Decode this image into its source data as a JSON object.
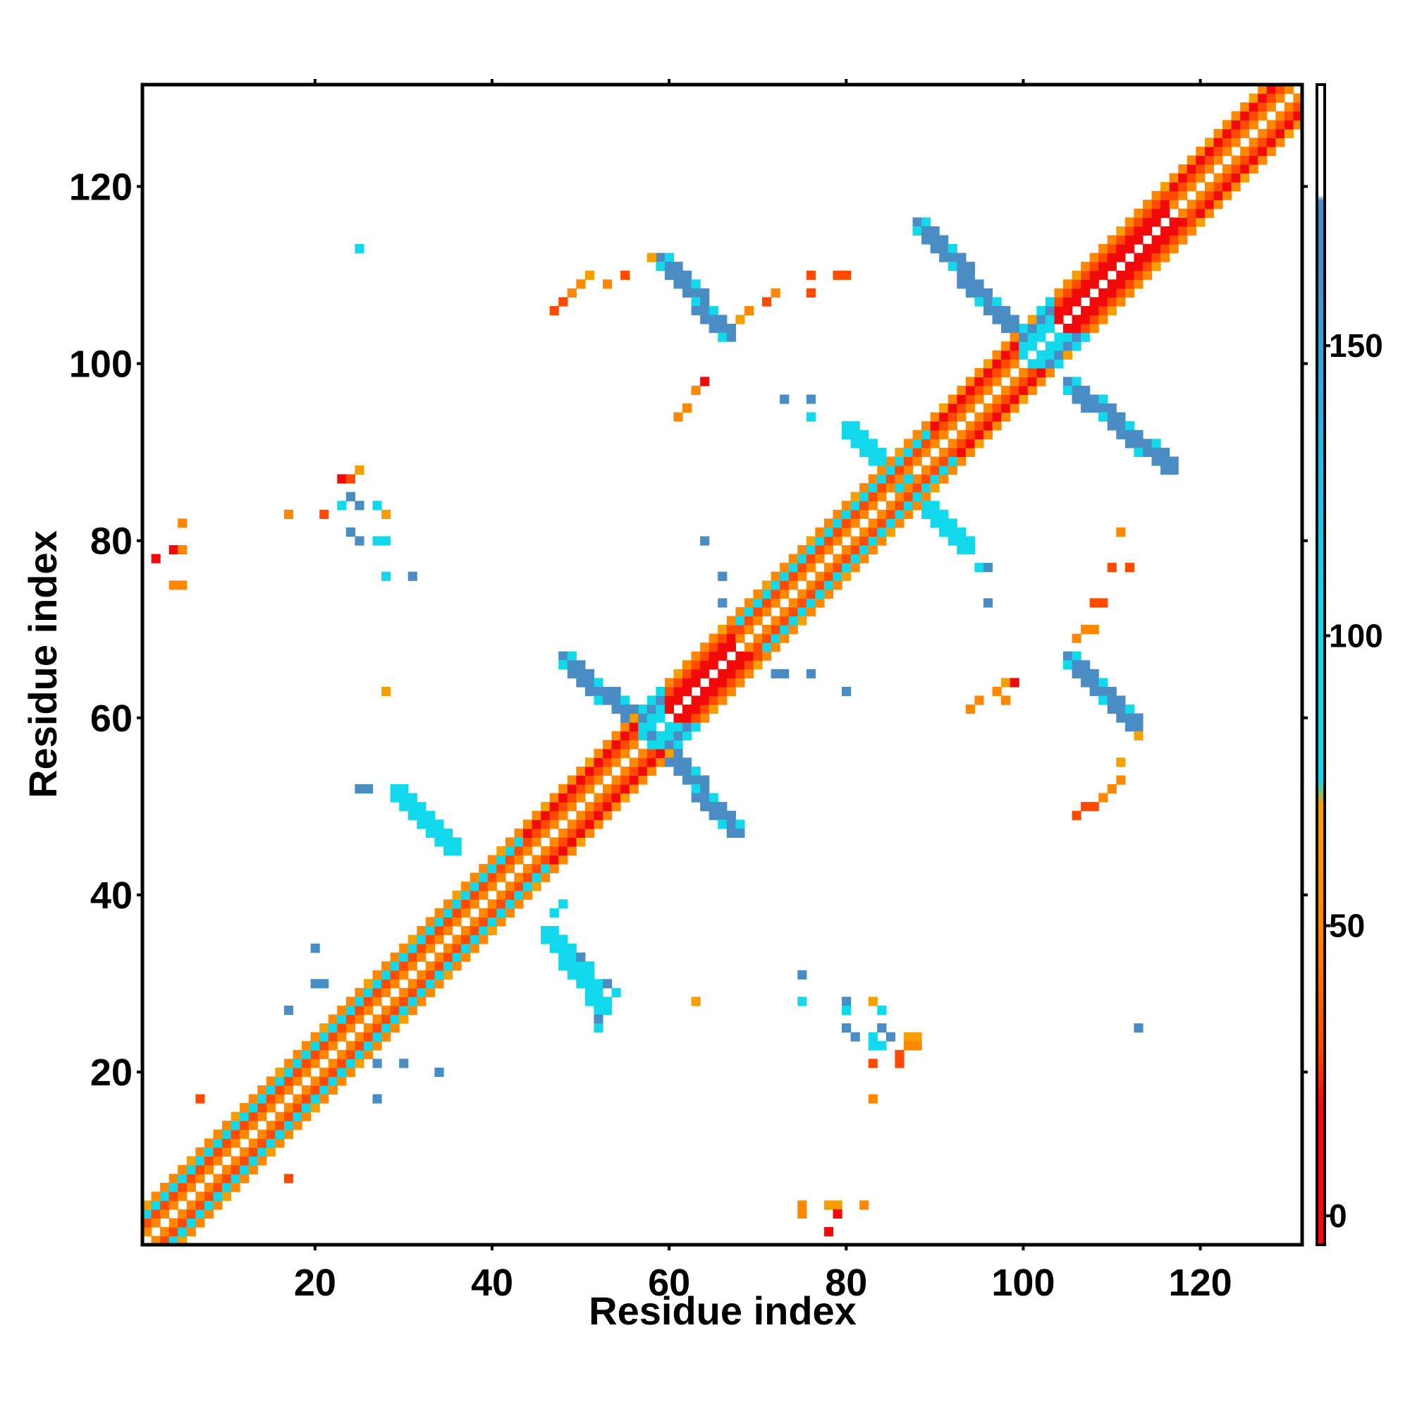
{
  "colors": {
    "red": "#f20a0a",
    "red_orange": "#ff4a00",
    "orange": "#ff8800",
    "amber": "#f5a000",
    "cyan": "#12d8ec",
    "steel_blue": "#4a8cc4",
    "frame": "#000000",
    "background": "#ffffff"
  },
  "chart_data": {
    "type": "heatmap",
    "title": "",
    "xlabel": "Residue index",
    "ylabel": "Residue index",
    "xlim": [
      1,
      131
    ],
    "ylim": [
      1,
      131
    ],
    "xticks": [
      20,
      40,
      60,
      80,
      100,
      120
    ],
    "yticks": [
      20,
      40,
      60,
      80,
      100,
      120
    ],
    "colorbar": {
      "ticks": [
        0,
        50,
        100,
        150
      ],
      "range": [
        -5,
        195
      ],
      "bands": [
        {
          "from": -5,
          "to": 25,
          "color": "red"
        },
        {
          "from": 25,
          "to": 75,
          "color": "orange"
        },
        {
          "from": 75,
          "to": 175,
          "color": "cyan"
        },
        {
          "from": 175,
          "to": 195,
          "color": "white"
        }
      ]
    },
    "diagonal_bands": [
      {
        "from": 1,
        "to": 44,
        "pattern": "mixed"
      },
      {
        "from": 44,
        "to": 57,
        "pattern": "warm"
      },
      {
        "from": 57,
        "to": 60,
        "pattern": "cyan"
      },
      {
        "from": 60,
        "to": 68,
        "pattern": "red"
      },
      {
        "from": 68,
        "to": 90,
        "pattern": "mixed"
      },
      {
        "from": 90,
        "to": 100,
        "pattern": "warm"
      },
      {
        "from": 100,
        "to": 104,
        "pattern": "cyan"
      },
      {
        "from": 104,
        "to": 117,
        "pattern": "red"
      },
      {
        "from": 117,
        "to": 131,
        "pattern": "warm"
      }
    ],
    "antiparallel_segments": [
      {
        "from": [
          48,
          67
        ],
        "to": [
          57,
          59
        ],
        "band": "steel_blue"
      },
      {
        "from": [
          59,
          57
        ],
        "to": [
          67,
          48
        ],
        "band": "steel_blue"
      },
      {
        "from": [
          59,
          112
        ],
        "to": [
          66,
          104
        ],
        "band": "steel_blue"
      },
      {
        "from": [
          105,
          67
        ],
        "to": [
          112,
          60
        ],
        "band": "steel_blue"
      },
      {
        "from": [
          88,
          116
        ],
        "to": [
          98,
          105
        ],
        "band": "steel_blue"
      },
      {
        "from": [
          105,
          98
        ],
        "to": [
          116,
          89
        ],
        "band": "steel_blue"
      },
      {
        "from": [
          29,
          52
        ],
        "to": [
          35,
          46
        ],
        "band": "cyan"
      },
      {
        "from": [
          46,
          36
        ],
        "to": [
          52,
          28
        ],
        "band": "cyan"
      },
      {
        "from": [
          80,
          93
        ],
        "to": [
          86,
          87
        ],
        "band": "cyan"
      },
      {
        "from": [
          87,
          86
        ],
        "to": [
          93,
          80
        ],
        "band": "cyan"
      }
    ],
    "contacts": [
      {
        "x": 25,
        "y": 113,
        "band": "cyan"
      },
      {
        "x": 47,
        "y": 106,
        "band": "red_orange"
      },
      {
        "x": 48,
        "y": 107,
        "band": "red_orange"
      },
      {
        "x": 49,
        "y": 108,
        "band": "orange"
      },
      {
        "x": 50,
        "y": 109,
        "band": "orange"
      },
      {
        "x": 51,
        "y": 110,
        "band": "amber"
      },
      {
        "x": 53,
        "y": 109,
        "band": "orange"
      },
      {
        "x": 55,
        "y": 110,
        "band": "red_orange"
      },
      {
        "x": 58,
        "y": 112,
        "band": "amber"
      },
      {
        "x": 67,
        "y": 104,
        "band": "orange"
      },
      {
        "x": 68,
        "y": 105,
        "band": "amber"
      },
      {
        "x": 69,
        "y": 106,
        "band": "orange"
      },
      {
        "x": 71,
        "y": 107,
        "band": "red_orange"
      },
      {
        "x": 72,
        "y": 108,
        "band": "orange"
      },
      {
        "x": 76,
        "y": 108,
        "band": "red_orange"
      },
      {
        "x": 76,
        "y": 110,
        "band": "red_orange"
      },
      {
        "x": 79,
        "y": 110,
        "band": "red_orange"
      },
      {
        "x": 80,
        "y": 110,
        "band": "red_orange"
      },
      {
        "x": 61,
        "y": 94,
        "band": "orange"
      },
      {
        "x": 62,
        "y": 95,
        "band": "orange"
      },
      {
        "x": 63,
        "y": 97,
        "band": "orange"
      },
      {
        "x": 64,
        "y": 98,
        "band": "red"
      },
      {
        "x": 73,
        "y": 96,
        "band": "steel_blue"
      },
      {
        "x": 76,
        "y": 96,
        "band": "steel_blue"
      },
      {
        "x": 76,
        "y": 94,
        "band": "cyan"
      },
      {
        "x": 23,
        "y": 87,
        "band": "red"
      },
      {
        "x": 24,
        "y": 87,
        "band": "red_orange"
      },
      {
        "x": 25,
        "y": 88,
        "band": "amber"
      },
      {
        "x": 23,
        "y": 84,
        "band": "cyan"
      },
      {
        "x": 24,
        "y": 85,
        "band": "steel_blue"
      },
      {
        "x": 25,
        "y": 84,
        "band": "steel_blue"
      },
      {
        "x": 27,
        "y": 84,
        "band": "cyan"
      },
      {
        "x": 28,
        "y": 83,
        "band": "amber"
      },
      {
        "x": 17,
        "y": 83,
        "band": "orange"
      },
      {
        "x": 21,
        "y": 83,
        "band": "red_orange"
      },
      {
        "x": 24,
        "y": 81,
        "band": "steel_blue"
      },
      {
        "x": 25,
        "y": 80,
        "band": "steel_blue"
      },
      {
        "x": 27,
        "y": 80,
        "band": "cyan"
      },
      {
        "x": 28,
        "y": 80,
        "band": "cyan"
      },
      {
        "x": 28,
        "y": 76,
        "band": "cyan"
      },
      {
        "x": 31,
        "y": 76,
        "band": "steel_blue"
      },
      {
        "x": 2,
        "y": 78,
        "band": "red"
      },
      {
        "x": 4,
        "y": 79,
        "band": "red"
      },
      {
        "x": 5,
        "y": 79,
        "band": "orange"
      },
      {
        "x": 5,
        "y": 82,
        "band": "orange"
      },
      {
        "x": 4,
        "y": 75,
        "band": "orange"
      },
      {
        "x": 5,
        "y": 75,
        "band": "orange"
      },
      {
        "x": 28,
        "y": 63,
        "band": "amber"
      },
      {
        "x": 64,
        "y": 80,
        "band": "steel_blue"
      },
      {
        "x": 66,
        "y": 76,
        "band": "steel_blue"
      },
      {
        "x": 66,
        "y": 73,
        "band": "steel_blue"
      },
      {
        "x": 76,
        "y": 65,
        "band": "steel_blue"
      },
      {
        "x": 72,
        "y": 65,
        "band": "steel_blue"
      },
      {
        "x": 73,
        "y": 65,
        "band": "steel_blue"
      },
      {
        "x": 80,
        "y": 63,
        "band": "steel_blue"
      },
      {
        "x": 91,
        "y": 81,
        "band": "steel_blue"
      },
      {
        "x": 93,
        "y": 80,
        "band": "steel_blue"
      },
      {
        "x": 95,
        "y": 77,
        "band": "cyan"
      },
      {
        "x": 96,
        "y": 77,
        "band": "steel_blue"
      },
      {
        "x": 96,
        "y": 73,
        "band": "steel_blue"
      },
      {
        "x": 111,
        "y": 81,
        "band": "orange"
      },
      {
        "x": 110,
        "y": 77,
        "band": "red_orange"
      },
      {
        "x": 112,
        "y": 77,
        "band": "red_orange"
      },
      {
        "x": 108,
        "y": 73,
        "band": "red_orange"
      },
      {
        "x": 109,
        "y": 73,
        "band": "red_orange"
      },
      {
        "x": 107,
        "y": 70,
        "band": "orange"
      },
      {
        "x": 108,
        "y": 70,
        "band": "orange"
      },
      {
        "x": 106,
        "y": 69,
        "band": "orange"
      },
      {
        "x": 98,
        "y": 64,
        "band": "amber"
      },
      {
        "x": 99,
        "y": 64,
        "band": "red"
      },
      {
        "x": 97,
        "y": 63,
        "band": "orange"
      },
      {
        "x": 95,
        "y": 62,
        "band": "orange"
      },
      {
        "x": 98,
        "y": 62,
        "band": "orange"
      },
      {
        "x": 94,
        "y": 61,
        "band": "orange"
      },
      {
        "x": 111,
        "y": 55,
        "band": "amber"
      },
      {
        "x": 111,
        "y": 53,
        "band": "orange"
      },
      {
        "x": 110,
        "y": 52,
        "band": "orange"
      },
      {
        "x": 109,
        "y": 51,
        "band": "orange"
      },
      {
        "x": 108,
        "y": 50,
        "band": "red_orange"
      },
      {
        "x": 107,
        "y": 50,
        "band": "red_orange"
      },
      {
        "x": 106,
        "y": 49,
        "band": "red_orange"
      },
      {
        "x": 113,
        "y": 58,
        "band": "amber"
      },
      {
        "x": 26,
        "y": 52,
        "band": "steel_blue"
      },
      {
        "x": 25,
        "y": 52,
        "band": "steel_blue"
      },
      {
        "x": 33,
        "y": 47,
        "band": "cyan"
      },
      {
        "x": 34,
        "y": 48,
        "band": "steel_blue"
      },
      {
        "x": 35,
        "y": 47,
        "band": "cyan"
      },
      {
        "x": 47,
        "y": 38,
        "band": "cyan"
      },
      {
        "x": 48,
        "y": 39,
        "band": "cyan"
      },
      {
        "x": 49,
        "y": 34,
        "band": "cyan"
      },
      {
        "x": 50,
        "y": 33,
        "band": "steel_blue"
      },
      {
        "x": 51,
        "y": 32,
        "band": "cyan"
      },
      {
        "x": 53,
        "y": 30,
        "band": "steel_blue"
      },
      {
        "x": 54,
        "y": 29,
        "band": "cyan"
      },
      {
        "x": 52,
        "y": 26,
        "band": "steel_blue"
      },
      {
        "x": 52,
        "y": 25,
        "band": "cyan"
      },
      {
        "x": 20,
        "y": 34,
        "band": "steel_blue"
      },
      {
        "x": 20,
        "y": 30,
        "band": "steel_blue"
      },
      {
        "x": 21,
        "y": 30,
        "band": "steel_blue"
      },
      {
        "x": 17,
        "y": 27,
        "band": "steel_blue"
      },
      {
        "x": 23,
        "y": 22,
        "band": "steel_blue"
      },
      {
        "x": 27,
        "y": 21,
        "band": "steel_blue"
      },
      {
        "x": 30,
        "y": 21,
        "band": "steel_blue"
      },
      {
        "x": 34,
        "y": 20,
        "band": "steel_blue"
      },
      {
        "x": 27,
        "y": 17,
        "band": "steel_blue"
      },
      {
        "x": 7,
        "y": 17,
        "band": "red_orange"
      },
      {
        "x": 17,
        "y": 8,
        "band": "red_orange"
      },
      {
        "x": 63,
        "y": 28,
        "band": "amber"
      },
      {
        "x": 75,
        "y": 31,
        "band": "steel_blue"
      },
      {
        "x": 75,
        "y": 28,
        "band": "cyan"
      },
      {
        "x": 80,
        "y": 28,
        "band": "steel_blue"
      },
      {
        "x": 80,
        "y": 27,
        "band": "cyan"
      },
      {
        "x": 80,
        "y": 25,
        "band": "steel_blue"
      },
      {
        "x": 81,
        "y": 24,
        "band": "steel_blue"
      },
      {
        "x": 83,
        "y": 28,
        "band": "amber"
      },
      {
        "x": 84,
        "y": 27,
        "band": "cyan"
      },
      {
        "x": 83,
        "y": 24,
        "band": "cyan"
      },
      {
        "x": 84,
        "y": 25,
        "band": "steel_blue"
      },
      {
        "x": 85,
        "y": 24,
        "band": "steel_blue"
      },
      {
        "x": 83,
        "y": 23,
        "band": "cyan"
      },
      {
        "x": 84,
        "y": 23,
        "band": "cyan"
      },
      {
        "x": 87,
        "y": 24,
        "band": "amber"
      },
      {
        "x": 88,
        "y": 24,
        "band": "amber"
      },
      {
        "x": 87,
        "y": 23,
        "band": "orange"
      },
      {
        "x": 88,
        "y": 23,
        "band": "orange"
      },
      {
        "x": 86,
        "y": 22,
        "band": "red_orange"
      },
      {
        "x": 86,
        "y": 21,
        "band": "red_orange"
      },
      {
        "x": 83,
        "y": 21,
        "band": "red_orange"
      },
      {
        "x": 83,
        "y": 17,
        "band": "orange"
      },
      {
        "x": 113,
        "y": 25,
        "band": "steel_blue"
      },
      {
        "x": 75,
        "y": 5,
        "band": "orange"
      },
      {
        "x": 75,
        "y": 4,
        "band": "orange"
      },
      {
        "x": 78,
        "y": 5,
        "band": "amber"
      },
      {
        "x": 79,
        "y": 5,
        "band": "amber"
      },
      {
        "x": 79,
        "y": 4,
        "band": "red"
      },
      {
        "x": 82,
        "y": 5,
        "band": "orange"
      },
      {
        "x": 78,
        "y": 2,
        "band": "red"
      }
    ]
  }
}
